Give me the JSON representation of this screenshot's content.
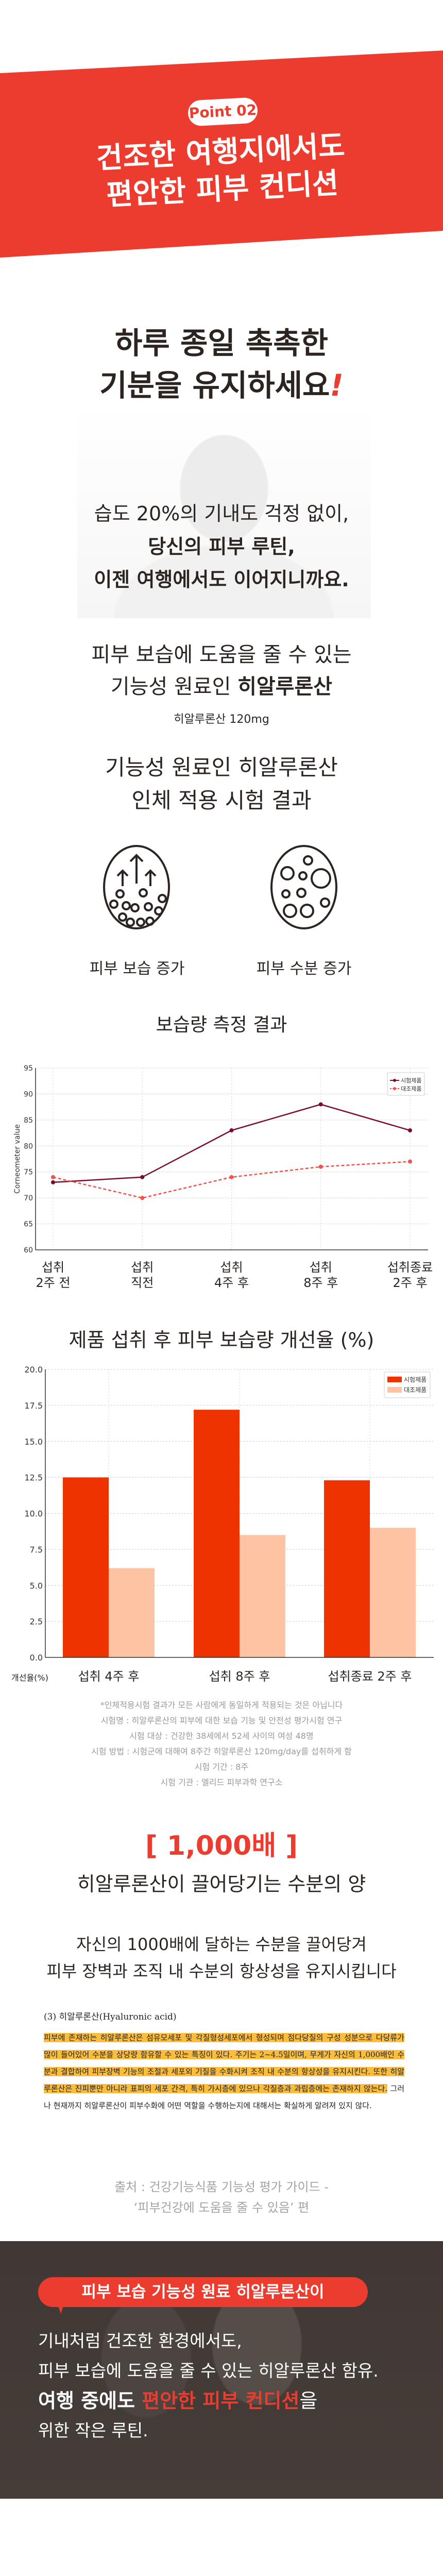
{
  "hero": {
    "badge": "Point 02",
    "title_line1": "건조한 여행지에서도",
    "title_line2": "편안한 피부 컨디션"
  },
  "headline": {
    "line1": "하루 종일 촉촉한",
    "line2": "기분을 유지하세요",
    "exclaim": "!"
  },
  "intro": {
    "line1": "습도 20%의 기내도 걱정 없이,",
    "line2": "당신의 피부 루틴,",
    "line3": "이젠 여행에서도 이어지니까요."
  },
  "ingredient": {
    "line1": "피부 보습에 도움을 줄 수 있는",
    "line2_prefix": "기능성 원료인 ",
    "line2_bold": "히알루론산",
    "dose": "히알루론산 120mg"
  },
  "trial": {
    "line1": "기능성 원료인 히알루론산",
    "line2": "인체 적용 시험 결과"
  },
  "effects": [
    {
      "label": "피부 보습 증가",
      "icon": "moisture-rise-icon"
    },
    {
      "label": "피부 수분 증가",
      "icon": "water-cells-icon"
    }
  ],
  "chart_data": [
    {
      "type": "line",
      "title": "보습량 측정 결과",
      "ylabel": "Corneometer value",
      "ylim": [
        60,
        95
      ],
      "yticks": [
        60,
        65,
        70,
        75,
        80,
        85,
        90,
        95
      ],
      "categories": [
        [
          "섭취",
          "2주 전"
        ],
        [
          "섭취",
          "직전"
        ],
        [
          "섭취",
          "4주 후"
        ],
        [
          "섭취",
          "8주 후"
        ],
        [
          "섭취종료",
          "2주 후"
        ]
      ],
      "series": [
        {
          "name": "시험제품",
          "color": "#7a0a2e",
          "dashed": false,
          "values": [
            73,
            74,
            83,
            88,
            83
          ]
        },
        {
          "name": "대조제품",
          "color": "#f2524a",
          "dashed": true,
          "values": [
            74,
            70,
            74,
            76,
            77
          ]
        }
      ],
      "grid": true,
      "legend": "top-right"
    },
    {
      "type": "bar",
      "title": "제품 섭취 후 피부 보습량 개선율 (%)",
      "ylabel": "개선율(%)",
      "ylim": [
        0,
        20
      ],
      "yticks": [
        "0.0",
        "2.5",
        "5.0",
        "7.5",
        "10.0",
        "12.5",
        "15.0",
        "17.5",
        "20.0"
      ],
      "categories": [
        "섭취 4주 후",
        "섭취 8주 후",
        "섭취종료 2주 후"
      ],
      "series": [
        {
          "name": "시험제품",
          "color": "#ee3300",
          "values": [
            12.5,
            17.2,
            12.3
          ]
        },
        {
          "name": "대조제품",
          "color": "#fdc3a3",
          "values": [
            6.2,
            8.5,
            9.0
          ]
        }
      ],
      "grid": true,
      "legend": "top-right"
    }
  ],
  "notes": [
    "*인체적용시험 결과가 모든 사람에게 동일하게 적용되는 것은 아닙니다",
    "시험명 : 히알루론산의 피부에 대한 보습 기능 및 안전성 평가시험 연구",
    "시험 대상 : 건강한 38세에서 52세 사이의 여성 48명",
    "시험 방법 : 시험군에 대해여 8주간 히알루론산 120mg/day를 섭취하게 함",
    "시험 기간 : 8주",
    "시험 기관 : 엘리드 피부과학 연구소"
  ],
  "thousand": {
    "big": "[ 1,000배 ]",
    "sub": "히알루론산이 끌어당기는 수분의 양",
    "line1": "자신의 1000배에 달하는 수분을 끌어당겨",
    "line2": "피부 장벽과 조직 내 수분의 항상성을 유지시킵니다"
  },
  "doc": {
    "heading": "(3) 히알루론산(Hyaluronic acid)",
    "highlighted": "피부에 존재하는 히알루론산은 섬유모세포 및 각질형성세포에서 형성되며 점다당질의 구성 성분으로 다당류가 많이 들어있어 수분을 상당량 함유할 수 있는 특징이 있다. 주기는 2~4.5일이며, 무게가 자신의 1,000배인 수분과 결합하여 피부장벽 기능의 조절과 세포외 기질을 수화시켜 조직 내 수분의 항상성을 유지시킨다. 또한 히알루론산은 진피뿐만 아니라 표피의 세포 간격, 특히 가시층에 있으나 각질층과 과립층에는 존재하지 않는다.",
    "rest": " 그러나 현재까지 히알루론산이 피부수화에 어떤 역할을 수행하는지에 대해서는 확실하게 알려져 있지 않다."
  },
  "source": {
    "line1": "출처 : 건강기능식품 기능성 평가 가이드 -",
    "line2": "‘피부건강에 도움을 줄 수 있음’ 편"
  },
  "closing": {
    "bubble": "피부 보습 기능성 원료 히알루론산이",
    "line1": "기내처럼 건조한 환경에서도,",
    "line2": "피부 보습에 도움을 줄 수 있는 히알루론산 함유.",
    "line3_bold": "여행 중에도 ",
    "line3_red": "편안한 피부 컨디션",
    "line3_end": "을",
    "line4": "위한 작은 루틴."
  }
}
